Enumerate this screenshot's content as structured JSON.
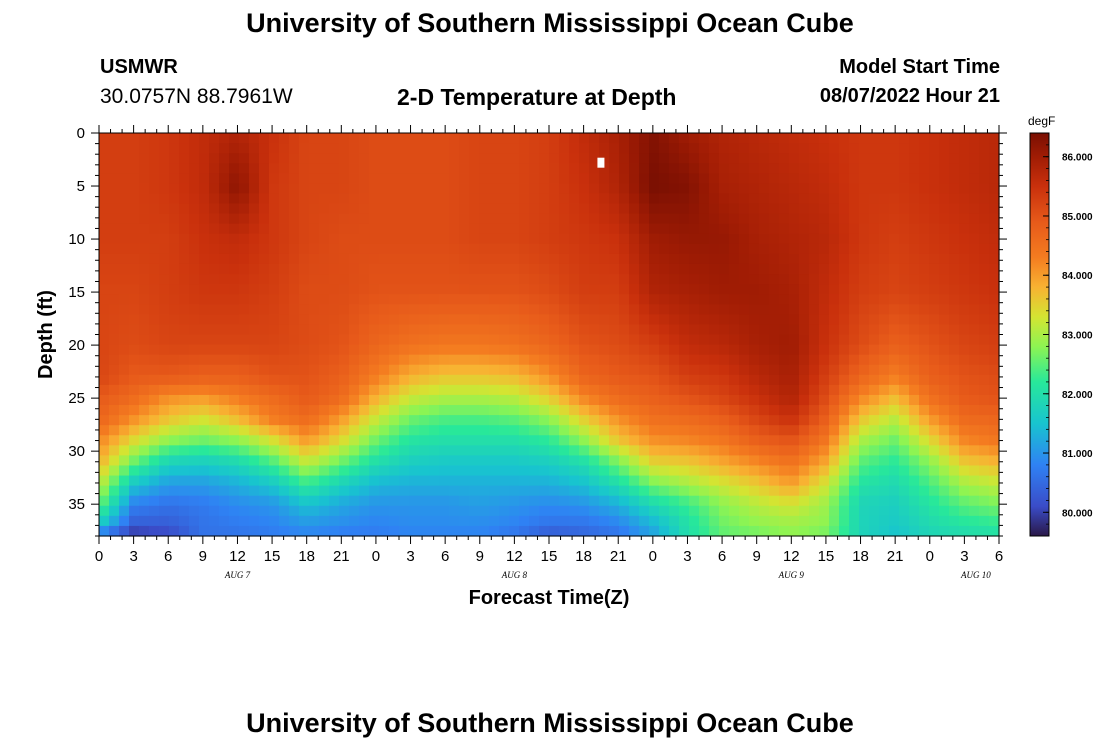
{
  "page": {
    "title": "University of Southern Mississippi Ocean Cube",
    "footer_title": "University of Southern Mississippi Ocean Cube",
    "station": "USMWR",
    "coordinates": "30.0757N  88.7961W",
    "subtitle": "2-D Temperature at Depth",
    "model_start_label": "Model Start Time",
    "model_start_value": "08/07/2022 Hour 21"
  },
  "chart_data": {
    "type": "heatmap",
    "title": "2-D Temperature at Depth",
    "xlabel": "Forecast Time(Z)",
    "ylabel": "Depth (ft)",
    "x_range_hours": [
      0,
      78
    ],
    "y_range_ft": [
      0,
      38
    ],
    "y_ticks": [
      "0",
      "5",
      "10",
      "15",
      "20",
      "25",
      "30",
      "35"
    ],
    "x_tick_hours": [
      0,
      3,
      6,
      9,
      12,
      15,
      18,
      21,
      24,
      27,
      30,
      33,
      36,
      39,
      42,
      45,
      48,
      51,
      54,
      57,
      60,
      63,
      66,
      69,
      72,
      75,
      78
    ],
    "x_ticks": [
      "0",
      "3",
      "6",
      "9",
      "12",
      "15",
      "18",
      "21",
      "0",
      "3",
      "6",
      "9",
      "12",
      "15",
      "18",
      "21",
      "0",
      "3",
      "6",
      "9",
      "12",
      "15",
      "18",
      "21",
      "0",
      "3",
      "6"
    ],
    "day_labels": [
      {
        "label": "AUG 7",
        "hour": 12
      },
      {
        "label": "AUG 8",
        "hour": 36
      },
      {
        "label": "AUG 9",
        "hour": 60
      },
      {
        "label": "AUG 10",
        "hour": 76
      }
    ],
    "colorbar": {
      "unit": "degF",
      "min": 79.6,
      "max": 86.4,
      "ticks": [
        "86.000",
        "85.000",
        "84.000",
        "83.000",
        "82.000",
        "81.000",
        "80.000"
      ],
      "tick_values": [
        86,
        85,
        84,
        83,
        82,
        81,
        80
      ]
    },
    "colormap": [
      {
        "v": 79.6,
        "c": "#2a1848"
      },
      {
        "v": 80.1,
        "c": "#3a4cc8"
      },
      {
        "v": 80.8,
        "c": "#2f82f4"
      },
      {
        "v": 81.5,
        "c": "#18c4cf"
      },
      {
        "v": 82.2,
        "c": "#28e89a"
      },
      {
        "v": 82.8,
        "c": "#8ef452"
      },
      {
        "v": 83.3,
        "c": "#d4e432"
      },
      {
        "v": 83.8,
        "c": "#f8b232"
      },
      {
        "v": 84.3,
        "c": "#f47c20"
      },
      {
        "v": 84.9,
        "c": "#e75a1a"
      },
      {
        "v": 85.5,
        "c": "#c9300c"
      },
      {
        "v": 86.0,
        "c": "#a01c04"
      },
      {
        "v": 86.4,
        "c": "#7a0f02"
      }
    ],
    "field_hours": [
      0,
      3,
      6,
      9,
      12,
      15,
      18,
      21,
      24,
      27,
      30,
      33,
      36,
      39,
      42,
      45,
      48,
      51,
      54,
      57,
      60,
      63,
      66,
      69,
      72,
      75,
      78
    ],
    "field_depths": [
      0,
      5,
      10,
      15,
      20,
      23,
      25,
      27,
      29,
      31,
      33,
      35,
      37,
      38
    ],
    "temperature_degF": [
      [
        85.3,
        85.3,
        85.3,
        85.2,
        85.2,
        85.2,
        84.9,
        84.7,
        84.2,
        83.8,
        83.2,
        82.6,
        81.6,
        80.5
      ],
      [
        85.3,
        85.3,
        85.3,
        85.2,
        85.1,
        84.9,
        84.6,
        84.1,
        83.4,
        82.6,
        81.6,
        80.8,
        80.3,
        79.8
      ],
      [
        85.4,
        85.4,
        85.3,
        85.3,
        85.2,
        84.9,
        84.1,
        83.6,
        82.8,
        81.8,
        81.1,
        80.6,
        80.3,
        80.0
      ],
      [
        85.6,
        85.6,
        85.5,
        85.4,
        85.2,
        84.8,
        84.0,
        83.3,
        82.6,
        81.7,
        81.1,
        80.7,
        80.6,
        80.6
      ],
      [
        85.8,
        86.2,
        85.6,
        85.4,
        85.2,
        84.8,
        84.3,
        83.7,
        82.8,
        81.9,
        81.3,
        80.9,
        80.7,
        80.6
      ],
      [
        85.5,
        85.4,
        85.4,
        85.3,
        85.2,
        85.0,
        84.6,
        84.3,
        83.3,
        82.4,
        81.6,
        81.0,
        80.8,
        80.7
      ],
      [
        85.2,
        85.2,
        85.2,
        85.1,
        85.1,
        85.0,
        84.9,
        84.6,
        84.0,
        83.2,
        82.3,
        81.5,
        81.0,
        80.8
      ],
      [
        85.2,
        85.2,
        85.1,
        85.1,
        85.0,
        84.8,
        84.6,
        84.0,
        83.4,
        82.6,
        81.8,
        81.2,
        80.9,
        80.7
      ],
      [
        85.1,
        85.1,
        85.1,
        85.0,
        84.7,
        84.3,
        83.8,
        83.2,
        82.6,
        82.0,
        81.4,
        81.0,
        80.8,
        80.7
      ],
      [
        85.1,
        85.1,
        85.1,
        85.0,
        84.5,
        83.8,
        83.2,
        82.6,
        82.1,
        81.7,
        81.3,
        81.0,
        80.9,
        80.8
      ],
      [
        85.1,
        85.1,
        85.1,
        85.0,
        84.4,
        83.6,
        83.0,
        82.4,
        82.0,
        81.6,
        81.3,
        81.0,
        80.9,
        80.8
      ],
      [
        85.2,
        85.2,
        85.2,
        85.0,
        84.4,
        83.6,
        83.0,
        82.4,
        82.0,
        81.6,
        81.3,
        81.1,
        80.9,
        80.8
      ],
      [
        85.2,
        85.2,
        85.2,
        85.0,
        84.5,
        83.7,
        83.1,
        82.5,
        82.0,
        81.6,
        81.3,
        81.0,
        80.8,
        80.6
      ],
      [
        85.3,
        85.3,
        85.3,
        85.1,
        84.7,
        84.1,
        83.5,
        82.8,
        82.2,
        81.7,
        81.3,
        80.9,
        80.6,
        80.2
      ],
      [
        85.6,
        85.5,
        85.4,
        85.3,
        85.0,
        84.7,
        84.2,
        83.5,
        82.8,
        82.0,
        81.5,
        81.0,
        80.6,
        80.4
      ],
      [
        85.9,
        85.8,
        85.5,
        85.3,
        85.1,
        84.9,
        84.6,
        84.1,
        83.6,
        82.7,
        82.0,
        81.3,
        80.8,
        80.6
      ],
      [
        86.3,
        86.4,
        86.0,
        85.8,
        85.3,
        85.0,
        84.8,
        84.5,
        84.1,
        83.5,
        82.7,
        81.9,
        81.3,
        81.1
      ],
      [
        86.0,
        86.3,
        86.1,
        85.9,
        85.6,
        85.3,
        85.0,
        84.6,
        84.2,
        83.6,
        83.0,
        82.3,
        82.0,
        82.0
      ],
      [
        85.8,
        85.9,
        86.1,
        86.0,
        85.7,
        85.4,
        85.2,
        84.8,
        84.4,
        83.9,
        83.3,
        82.8,
        82.6,
        82.5
      ],
      [
        85.7,
        85.8,
        85.9,
        86.0,
        85.9,
        85.7,
        85.5,
        85.2,
        84.8,
        84.2,
        83.6,
        83.1,
        82.8,
        82.6
      ],
      [
        85.6,
        85.7,
        85.8,
        85.9,
        86.0,
        85.9,
        85.8,
        85.5,
        85.0,
        84.5,
        84.0,
        83.3,
        82.9,
        82.8
      ],
      [
        85.5,
        85.6,
        85.7,
        85.6,
        85.5,
        85.3,
        85.1,
        84.8,
        84.4,
        83.9,
        83.3,
        82.9,
        82.8,
        82.6
      ],
      [
        85.4,
        85.4,
        85.4,
        85.3,
        85.1,
        84.7,
        84.2,
        83.6,
        83.0,
        82.5,
        82.1,
        81.8,
        81.8,
        81.8
      ],
      [
        85.4,
        85.4,
        85.3,
        85.2,
        84.8,
        84.3,
        83.7,
        83.1,
        82.6,
        82.2,
        81.9,
        81.7,
        81.6,
        81.5
      ],
      [
        85.5,
        85.5,
        85.4,
        85.3,
        85.0,
        84.8,
        84.5,
        84.0,
        83.4,
        82.8,
        82.4,
        82.1,
        81.9,
        81.8
      ],
      [
        85.6,
        85.6,
        85.5,
        85.4,
        85.2,
        85.0,
        84.9,
        84.6,
        84.2,
        83.6,
        83.0,
        82.5,
        82.1,
        81.9
      ],
      [
        85.7,
        85.7,
        85.6,
        85.5,
        85.3,
        85.1,
        85.0,
        84.7,
        84.4,
        83.8,
        83.2,
        82.7,
        82.2,
        82.0
      ]
    ],
    "marker": {
      "hour": 43.5,
      "depth_ft": 2.8
    }
  }
}
